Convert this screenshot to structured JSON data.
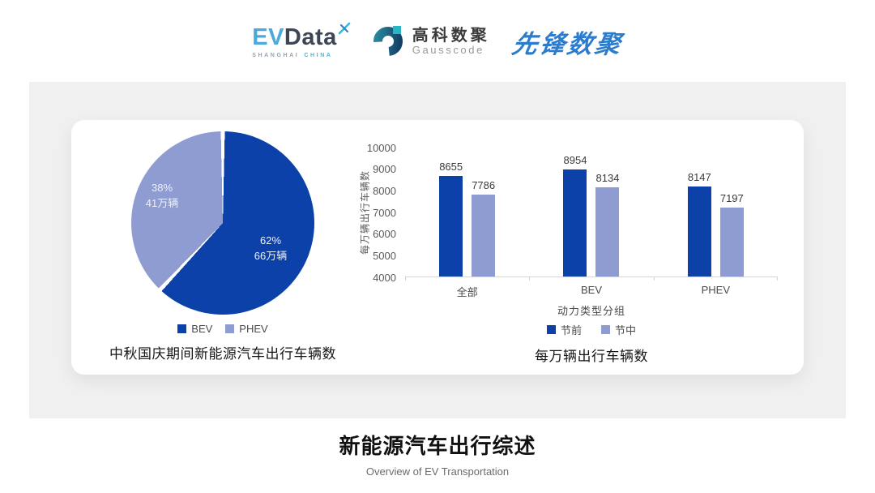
{
  "header": {
    "evdata": {
      "ev": "EV",
      "data": "Data",
      "sub_left": "SHANGHAI",
      "sub_right": "CHINA"
    },
    "gausscode": {
      "name_cn": "高科数聚",
      "name_en": "Gausscode"
    },
    "pioneer": {
      "name": "先锋数聚"
    }
  },
  "footer": {
    "title": "新能源汽车出行综述",
    "subtitle": "Overview of EV Transportation"
  },
  "chart_data": [
    {
      "type": "pie",
      "title": "中秋国庆期间新能源汽车出行车辆数",
      "slices": [
        {
          "label": "BEV",
          "percent": 62,
          "percent_label": "62%",
          "value_label": "66万辆",
          "color": "#0b41a8"
        },
        {
          "label": "PHEV",
          "percent": 38,
          "percent_label": "38%",
          "value_label": "41万辆",
          "color": "#8f9cd2"
        }
      ],
      "legend_position": "bottom",
      "slice_label_color": "#edf1fb"
    },
    {
      "type": "bar",
      "title": "每万辆出行车辆数",
      "categories": [
        "全部",
        "BEV",
        "PHEV"
      ],
      "series": [
        {
          "name": "节前",
          "values": [
            8655,
            8954,
            8147
          ],
          "color": "#0b41a8"
        },
        {
          "name": "节中",
          "values": [
            7786,
            8134,
            7197
          ],
          "color": "#8f9cd2"
        }
      ],
      "xlabel": "动力类型分组",
      "ylabel": "每万辆出行车辆数",
      "ylim": [
        4000,
        10000
      ],
      "yticks": [
        4000,
        5000,
        6000,
        7000,
        8000,
        9000,
        10000
      ],
      "grid": false,
      "legend_position": "bottom",
      "data_labels": true
    }
  ]
}
